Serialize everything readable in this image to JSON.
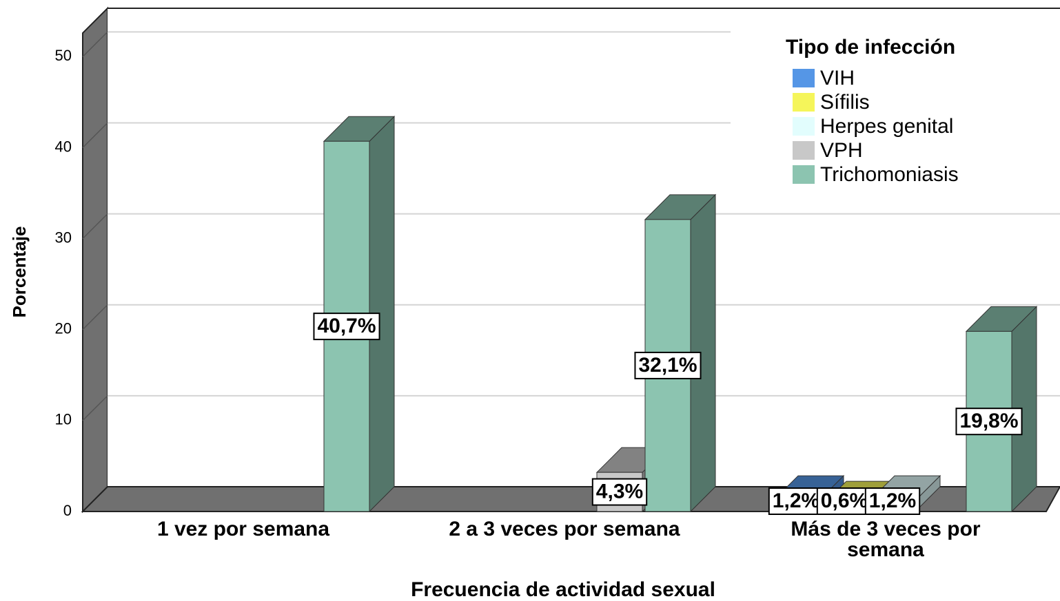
{
  "chart_data": {
    "type": "bar3d",
    "x_label": "Frecuencia de actividad sexual",
    "y_label": "Porcentaje",
    "legend_title": "Tipo de infección",
    "legend_position": "upper right",
    "grid": true,
    "categories": [
      "1 vez por semana",
      "2 a 3 veces por semana",
      "Más de 3 veces por semana"
    ],
    "series": [
      {
        "name": "VIH",
        "color": "#5596e6",
        "values": [
          null,
          null,
          1.2
        ],
        "value_labels": [
          null,
          null,
          "1,2%"
        ]
      },
      {
        "name": "Sífilis",
        "color": "#f5f55a",
        "values": [
          null,
          null,
          0.6
        ],
        "value_labels": [
          null,
          null,
          "0,6%"
        ]
      },
      {
        "name": "Herpes genital",
        "color": "#e2fdfd",
        "values": [
          null,
          null,
          1.2
        ],
        "value_labels": [
          null,
          null,
          "1,2%"
        ]
      },
      {
        "name": "VPH",
        "color": "#c8c8c8",
        "values": [
          null,
          4.3,
          null
        ],
        "value_labels": [
          null,
          "4,3%",
          null
        ]
      },
      {
        "name": "Trichomoniasis",
        "color": "#8cc4b0",
        "values": [
          40.7,
          32.1,
          19.8
        ],
        "value_labels": [
          "40,7%",
          "32,1%",
          "19,8%"
        ]
      }
    ],
    "ylim": [
      0,
      52.6
    ],
    "yticks": [
      0,
      10,
      20,
      30,
      40,
      50
    ]
  }
}
